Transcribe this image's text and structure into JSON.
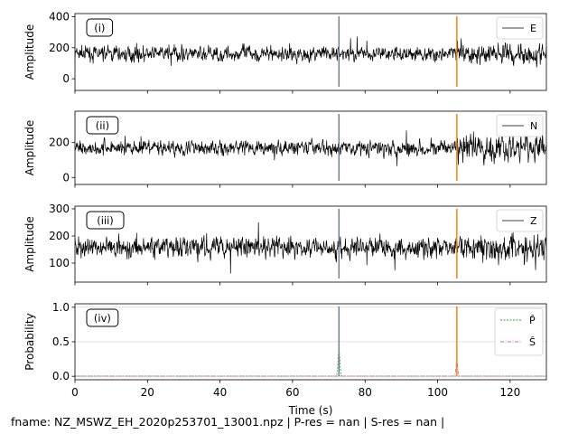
{
  "figure": {
    "footer": "fname: NZ_MSWZ_EH_2020p253701_13001.npz         | P-res = nan   |   S-res = nan |",
    "colors": {
      "trace": "#000000",
      "p_pick": "#708090",
      "s_pick": "#ff7f0e",
      "p_prob": "#2ca02c",
      "s_prob": "#c864c8",
      "grid": "#d9d9d9"
    }
  },
  "chart_data": [
    {
      "type": "line",
      "panel_label": "(i)",
      "ylabel": "Amplitude",
      "xlim": [
        0,
        130
      ],
      "ylim": [
        -75,
        420
      ],
      "yticks": [
        0,
        200,
        400
      ],
      "series": [
        {
          "name": "E",
          "baseline": 160,
          "noise": 32,
          "after_s_noise": 48
        }
      ],
      "picks": [
        {
          "x": 72.8,
          "kind": "P"
        },
        {
          "x": 105.3,
          "kind": "S"
        }
      ]
    },
    {
      "type": "line",
      "panel_label": "(ii)",
      "ylabel": "Amplitude",
      "xlim": [
        0,
        130
      ],
      "ylim": [
        -40,
        380
      ],
      "yticks": [
        0,
        200
      ],
      "series": [
        {
          "name": "N",
          "baseline": 170,
          "noise": 28,
          "after_s_noise": 55
        }
      ],
      "picks": [
        {
          "x": 72.8,
          "kind": "P"
        },
        {
          "x": 105.3,
          "kind": "S"
        }
      ]
    },
    {
      "type": "line",
      "panel_label": "(iii)",
      "ylabel": "Amplitude",
      "xlim": [
        0,
        130
      ],
      "ylim": [
        30,
        310
      ],
      "yticks": [
        100,
        200,
        300
      ],
      "series": [
        {
          "name": "Z",
          "baseline": 158,
          "noise": 25,
          "after_s_noise": 35
        }
      ],
      "picks": [
        {
          "x": 72.8,
          "kind": "P"
        },
        {
          "x": 105.3,
          "kind": "S"
        }
      ]
    },
    {
      "type": "line",
      "panel_label": "(iv)",
      "ylabel": "Probability",
      "xlabel": "Time (s)",
      "xlim": [
        0,
        130
      ],
      "ylim": [
        -0.05,
        1.05
      ],
      "xticks": [
        0,
        20,
        40,
        60,
        80,
        100,
        120
      ],
      "yticks": [
        0.0,
        0.5,
        1.0
      ],
      "ytick_labels": [
        "0.0",
        "0.5",
        "1.0"
      ],
      "grid": true,
      "series": [
        {
          "name": "P̂",
          "peak_x": 72.8,
          "peak_y": 0.38,
          "style": "dashed"
        },
        {
          "name": "Ŝ",
          "peak_x": 105.3,
          "peak_y": 0.22,
          "style": "dashdot"
        }
      ],
      "picks": [
        {
          "x": 72.8,
          "kind": "P"
        },
        {
          "x": 105.3,
          "kind": "S"
        }
      ]
    }
  ]
}
